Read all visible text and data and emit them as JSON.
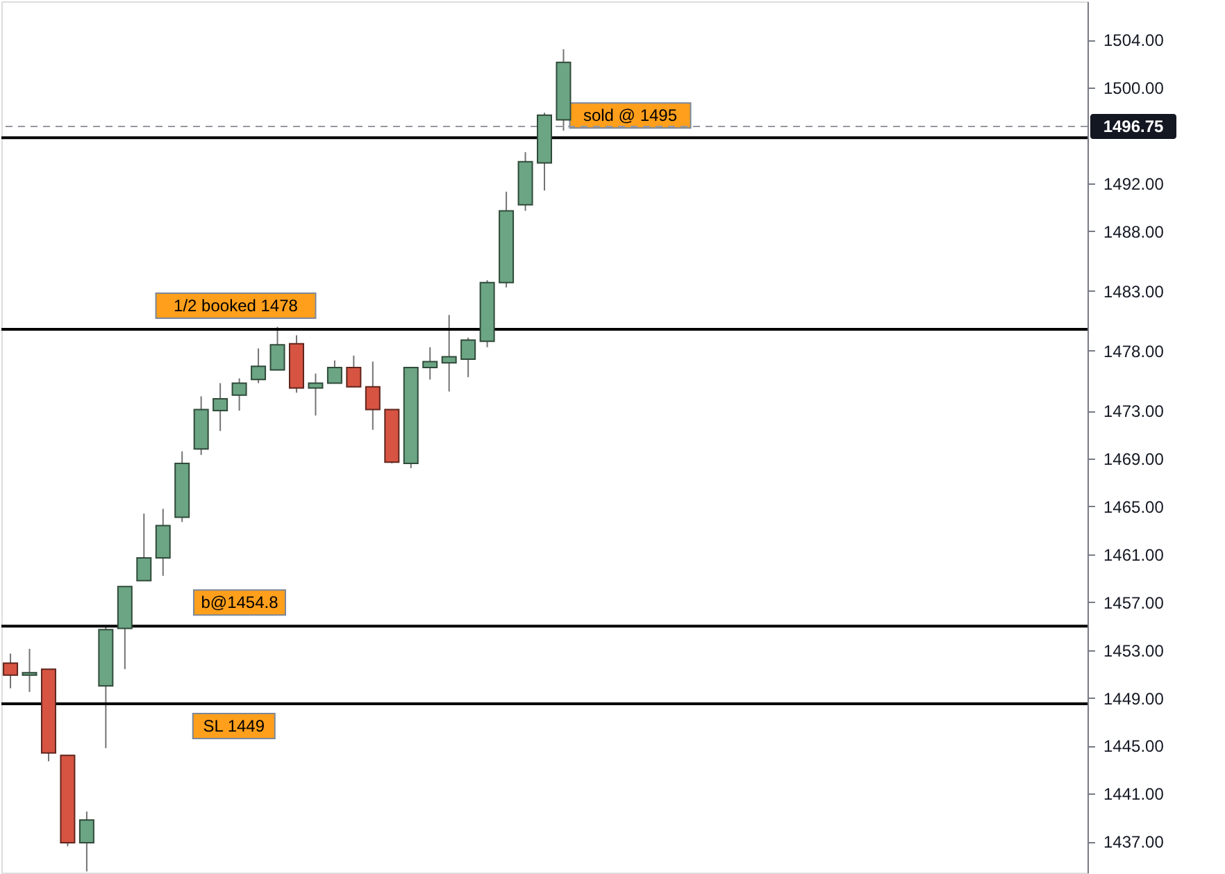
{
  "chart_data": {
    "type": "candlestick",
    "categories": [
      null,
      null,
      null,
      null,
      null,
      null,
      null,
      null,
      null,
      null,
      null,
      null,
      null,
      null,
      null,
      null,
      null,
      null,
      null,
      null,
      null,
      null,
      null,
      null,
      null,
      null,
      null,
      null,
      null,
      null,
      null,
      null,
      null,
      null,
      null,
      null,
      null,
      null,
      null,
      null,
      null,
      null,
      null,
      null,
      null,
      null,
      null,
      null,
      null,
      null,
      null,
      null,
      null,
      null,
      null,
      null,
      null
    ],
    "ohlc": [
      [
        1451.9,
        1452.7,
        1449.8,
        1450.9
      ],
      [
        1450.9,
        1453.1,
        1449.5,
        1451.1
      ],
      [
        1451.4,
        1451.4,
        1443.7,
        1444.4
      ],
      [
        1444.2,
        1444.2,
        1436.6,
        1436.9
      ],
      [
        1436.9,
        1439.5,
        1434.5,
        1438.8
      ],
      [
        1450.0,
        1455.0,
        1444.8,
        1454.7
      ],
      [
        1454.8,
        1458.3,
        1451.4,
        1458.3
      ],
      [
        1458.8,
        1464.4,
        1458.8,
        1460.7
      ],
      [
        1460.7,
        1464.8,
        1459.2,
        1463.4
      ],
      [
        1464.1,
        1469.6,
        1463.7,
        1468.6
      ],
      [
        1469.8,
        1474.2,
        1469.3,
        1473.1
      ],
      [
        1473.0,
        1475.3,
        1471.3,
        1474.0
      ],
      [
        1474.3,
        1475.7,
        1473.0,
        1475.3
      ],
      [
        1475.6,
        1478.2,
        1475.3,
        1476.7
      ],
      [
        1476.4,
        1480.0,
        1476.4,
        1478.5
      ],
      [
        1478.6,
        1479.3,
        1474.5,
        1474.9
      ],
      [
        1474.9,
        1476.1,
        1472.6,
        1475.3
      ],
      [
        1475.3,
        1477.2,
        1475.3,
        1476.6
      ],
      [
        1476.6,
        1477.6,
        1475.0,
        1475.0
      ],
      [
        1475.0,
        1477.1,
        1471.4,
        1473.1
      ],
      [
        1473.1,
        1473.1,
        1468.6,
        1468.7
      ],
      [
        1468.6,
        1476.6,
        1468.2,
        1476.6
      ],
      [
        1476.6,
        1478.3,
        1475.6,
        1477.1
      ],
      [
        1477.0,
        1481.0,
        1474.6,
        1477.5
      ],
      [
        1477.3,
        1479.1,
        1475.8,
        1478.9
      ],
      [
        1478.8,
        1483.9,
        1478.3,
        1483.7
      ],
      [
        1483.7,
        1491.3,
        1483.3,
        1489.7
      ],
      [
        1490.2,
        1494.6,
        1489.7,
        1493.8
      ],
      [
        1493.7,
        1497.9,
        1491.4,
        1497.7
      ],
      [
        1497.3,
        1503.2,
        1496.4,
        1502.1
      ],
      null,
      null,
      null,
      null,
      null,
      null,
      null,
      null,
      null,
      null,
      null,
      null,
      null,
      null,
      null,
      null,
      null,
      null,
      null,
      null,
      null,
      null,
      null,
      null,
      null,
      null,
      null
    ],
    "colors": [
      "#d75442",
      "#6ba583",
      "#d75442",
      "#d75442",
      "#6ba583",
      "#6ba583",
      "#6ba583",
      "#6ba583",
      "#6ba583",
      "#6ba583",
      "#6ba583",
      "#6ba583",
      "#6ba583",
      "#6ba583",
      "#6ba583",
      "#d75442",
      "#6ba583",
      "#6ba583",
      "#d75442",
      "#d75442",
      "#d75442",
      "#6ba583",
      "#6ba583",
      "#6ba583",
      "#6ba583",
      "#6ba583",
      "#6ba583",
      "#6ba583",
      "#6ba583",
      "#6ba583",
      null,
      null,
      null,
      null,
      null,
      null,
      null,
      null,
      null,
      null,
      null,
      null,
      null,
      null,
      null,
      null,
      null,
      null,
      null,
      null,
      null,
      null,
      null,
      null,
      null,
      null,
      null
    ],
    "ylim": [
      1434.4,
      1507.2
    ],
    "yticks": [
      {
        "value": 1437,
        "label": "1437.00"
      },
      {
        "value": 1441,
        "label": "1441.00"
      },
      {
        "value": 1445,
        "label": "1445.00"
      },
      {
        "value": 1449,
        "label": "1449.00"
      },
      {
        "value": 1453,
        "label": "1453.00"
      },
      {
        "value": 1457,
        "label": "1457.00"
      },
      {
        "value": 1461,
        "label": "1461.00"
      },
      {
        "value": 1465,
        "label": "1465.00"
      },
      {
        "value": 1469,
        "label": "1469.00"
      },
      {
        "value": 1473,
        "label": "1473.00"
      },
      {
        "value": 1478,
        "label": "1478.00"
      },
      {
        "value": 1483,
        "label": "1483.00"
      },
      {
        "value": 1488,
        "label": "1488.00"
      },
      {
        "value": 1492,
        "label": "1492.00"
      },
      {
        "value": 1500,
        "label": "1500.00"
      },
      {
        "value": 1504,
        "label": "1504.00"
      }
    ],
    "ref_lines": [
      {
        "axis": "y",
        "value": 1448.5,
        "label": "SL 1449",
        "color": "#000000"
      },
      {
        "axis": "y",
        "value": 1455.0,
        "label": "b@1454.8",
        "color": "#000000"
      },
      {
        "axis": "y",
        "value": 1479.8,
        "label": "1/2 booked 1478",
        "color": "#000000"
      },
      {
        "axis": "y",
        "value": 1495.8,
        "label": "sold @ 1495",
        "color": "#000000"
      },
      {
        "axis": "y",
        "value": 1496.75,
        "label": "1496.75",
        "color": "#9598a1",
        "line_style": "dashed"
      }
    ],
    "grid": false,
    "tick_labels": "y"
  }
}
